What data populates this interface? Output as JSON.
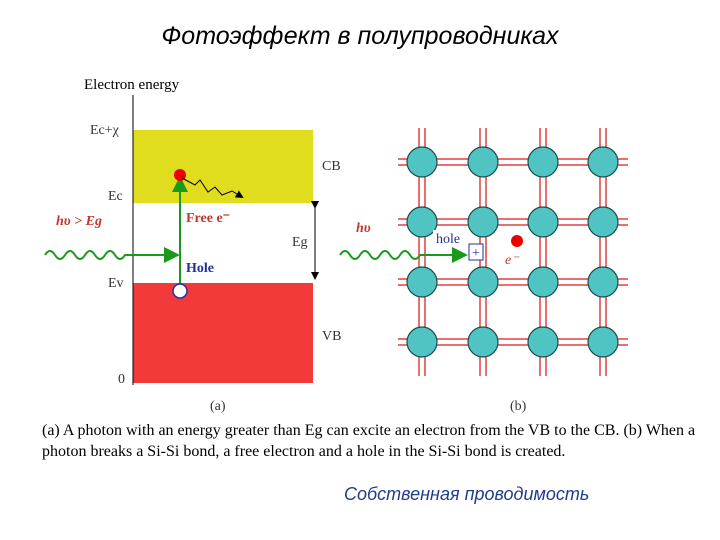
{
  "title": "Фотоэффект в полупроводниках",
  "band_diagram": {
    "axis_label": "Electron energy",
    "ec_chi": "Ec+χ",
    "ec": "Ec",
    "ev": "Ev",
    "zero": "0",
    "cb": "CB",
    "vb": "VB",
    "eg": "Eg",
    "photon": "hυ > Eg",
    "free_electron": "Free e⁻",
    "hole": "Hole",
    "panel": "(a)"
  },
  "lattice": {
    "photon": "hυ",
    "hole": "hole",
    "plus": "+",
    "electron": "e⁻",
    "panel": "(b)"
  },
  "caption": "(a) A photon with an energy greater than Eg  can excite an electron from the VB to the CB. (b) When a photon breaks a Si-Si bond, a free electron and a hole in the Si-Si bond is created.",
  "footer": "Собственная проводимость"
}
